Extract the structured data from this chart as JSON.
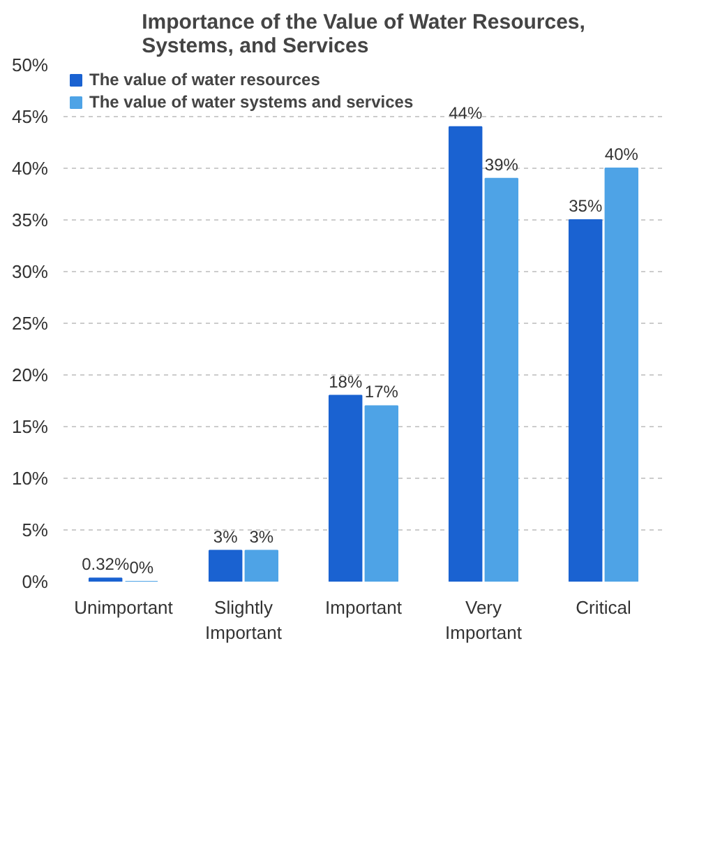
{
  "chart_data": {
    "type": "bar",
    "title": "Importance of the Value of Water Resources,\nSystems, and Services",
    "categories": [
      "Unimportant",
      "Slightly Important",
      "Important",
      "Very Important",
      "Critical"
    ],
    "series": [
      {
        "name": "The value of water resources",
        "color": "#1a62d1",
        "values": [
          0.32,
          3,
          18,
          44,
          35
        ],
        "value_labels": [
          "0.32%",
          "3%",
          "18%",
          "44%",
          "35%"
        ]
      },
      {
        "name": "The value of water systems and services",
        "color": "#4ea3e6",
        "values": [
          0,
          3,
          17,
          39,
          40
        ],
        "value_labels": [
          "0%",
          "3%",
          "17%",
          "39%",
          "40%"
        ]
      }
    ],
    "ylim": [
      0,
      50
    ],
    "yticks": [
      {
        "value": 0,
        "label": "0%"
      },
      {
        "value": 5,
        "label": "5%"
      },
      {
        "value": 10,
        "label": "10%"
      },
      {
        "value": 15,
        "label": "15%"
      },
      {
        "value": 20,
        "label": "20%"
      },
      {
        "value": 25,
        "label": "25%"
      },
      {
        "value": 30,
        "label": "30%"
      },
      {
        "value": 35,
        "label": "35%"
      },
      {
        "value": 40,
        "label": "40%"
      },
      {
        "value": 45,
        "label": "45%"
      },
      {
        "value": 50,
        "label": "50%"
      }
    ],
    "grid": "y",
    "legend": "top left"
  }
}
